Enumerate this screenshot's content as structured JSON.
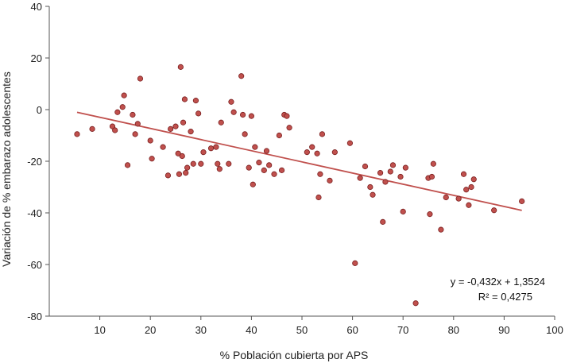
{
  "chart_data": {
    "type": "scatter",
    "xlabel": "% Población cubierta por APS",
    "ylabel": "Variación de % embarazo adolescentes",
    "xlim": [
      0,
      100
    ],
    "ylim": [
      -80,
      40
    ],
    "x_ticks": [
      10,
      20,
      30,
      40,
      50,
      60,
      70,
      80,
      90,
      100
    ],
    "y_ticks": [
      40,
      20,
      0,
      -20,
      -40,
      -60,
      -80
    ],
    "grid": false,
    "points": [
      {
        "x": 5.5,
        "y": -9.5
      },
      {
        "x": 8.5,
        "y": -7.5
      },
      {
        "x": 12.5,
        "y": -6.5
      },
      {
        "x": 13,
        "y": -8
      },
      {
        "x": 13.5,
        "y": -1
      },
      {
        "x": 14.5,
        "y": 1
      },
      {
        "x": 14.8,
        "y": 5.5
      },
      {
        "x": 15.5,
        "y": -21.5
      },
      {
        "x": 16.5,
        "y": -2
      },
      {
        "x": 17,
        "y": -9.5
      },
      {
        "x": 17.5,
        "y": -5.5
      },
      {
        "x": 18,
        "y": 12
      },
      {
        "x": 20,
        "y": -12
      },
      {
        "x": 20.3,
        "y": -19
      },
      {
        "x": 22.5,
        "y": -14.5
      },
      {
        "x": 23.5,
        "y": -25.5
      },
      {
        "x": 24,
        "y": -7.5
      },
      {
        "x": 25,
        "y": -6.5
      },
      {
        "x": 25.5,
        "y": -17
      },
      {
        "x": 25.7,
        "y": -25
      },
      {
        "x": 26,
        "y": 16.5
      },
      {
        "x": 26.3,
        "y": -18
      },
      {
        "x": 26.5,
        "y": -5
      },
      {
        "x": 26.8,
        "y": 4
      },
      {
        "x": 27,
        "y": -24.5
      },
      {
        "x": 27.3,
        "y": -22.5
      },
      {
        "x": 28,
        "y": -8.5
      },
      {
        "x": 28.5,
        "y": -21
      },
      {
        "x": 29,
        "y": 3.5
      },
      {
        "x": 29.5,
        "y": -1.5
      },
      {
        "x": 30,
        "y": -21
      },
      {
        "x": 30.5,
        "y": -16.5
      },
      {
        "x": 32,
        "y": -15
      },
      {
        "x": 33,
        "y": -14.5
      },
      {
        "x": 33.3,
        "y": -21
      },
      {
        "x": 33.7,
        "y": -23
      },
      {
        "x": 34,
        "y": -5
      },
      {
        "x": 35.5,
        "y": -21
      },
      {
        "x": 36,
        "y": 3
      },
      {
        "x": 36.5,
        "y": -1
      },
      {
        "x": 38,
        "y": 13
      },
      {
        "x": 38.3,
        "y": -2
      },
      {
        "x": 38.7,
        "y": -9.5
      },
      {
        "x": 39.5,
        "y": -22.5
      },
      {
        "x": 40,
        "y": -2.5
      },
      {
        "x": 40.3,
        "y": -29
      },
      {
        "x": 40.7,
        "y": -14.5
      },
      {
        "x": 41.5,
        "y": -20.5
      },
      {
        "x": 42.5,
        "y": -23.5
      },
      {
        "x": 43,
        "y": -16
      },
      {
        "x": 43.5,
        "y": -21.5
      },
      {
        "x": 44.5,
        "y": -25
      },
      {
        "x": 45.5,
        "y": -10
      },
      {
        "x": 46,
        "y": -23.5
      },
      {
        "x": 46.5,
        "y": -2
      },
      {
        "x": 47,
        "y": -2.5
      },
      {
        "x": 47.5,
        "y": -7
      },
      {
        "x": 51,
        "y": -16.5
      },
      {
        "x": 52,
        "y": -14.5
      },
      {
        "x": 53,
        "y": -17
      },
      {
        "x": 53.3,
        "y": -34
      },
      {
        "x": 53.6,
        "y": -25
      },
      {
        "x": 54,
        "y": -9.5
      },
      {
        "x": 55.5,
        "y": -27.5
      },
      {
        "x": 56.5,
        "y": -16.5
      },
      {
        "x": 59.5,
        "y": -13
      },
      {
        "x": 60.5,
        "y": -59.5
      },
      {
        "x": 61.5,
        "y": -26.5
      },
      {
        "x": 62.5,
        "y": -22
      },
      {
        "x": 63.5,
        "y": -30
      },
      {
        "x": 64,
        "y": -33
      },
      {
        "x": 65.5,
        "y": -24.5
      },
      {
        "x": 66,
        "y": -43.5
      },
      {
        "x": 66.5,
        "y": -28
      },
      {
        "x": 67.5,
        "y": -24
      },
      {
        "x": 68,
        "y": -21.5
      },
      {
        "x": 69.5,
        "y": -26
      },
      {
        "x": 70,
        "y": -39.5
      },
      {
        "x": 70.5,
        "y": -22.5
      },
      {
        "x": 72.5,
        "y": -75
      },
      {
        "x": 75,
        "y": -26.5
      },
      {
        "x": 75.3,
        "y": -40.5
      },
      {
        "x": 75.7,
        "y": -26
      },
      {
        "x": 76,
        "y": -21
      },
      {
        "x": 77.5,
        "y": -46.5
      },
      {
        "x": 78.5,
        "y": -34
      },
      {
        "x": 81,
        "y": -34.5
      },
      {
        "x": 82,
        "y": -25
      },
      {
        "x": 82.5,
        "y": -31
      },
      {
        "x": 83,
        "y": -37
      },
      {
        "x": 83.5,
        "y": -30
      },
      {
        "x": 84,
        "y": -27
      },
      {
        "x": 88,
        "y": -39
      },
      {
        "x": 93.5,
        "y": -35.5
      }
    ],
    "trendline": {
      "slope": -0.432,
      "intercept": 1.3524,
      "x_start": 5.5,
      "x_end": 93.5
    },
    "equation": "y = -0,432x + 1,3524",
    "r_squared": "R² = 0,4275",
    "colors": {
      "point": "#c0504d",
      "point_edge": "#7a2020",
      "line": "#c0504d",
      "axis": "#555555"
    }
  }
}
